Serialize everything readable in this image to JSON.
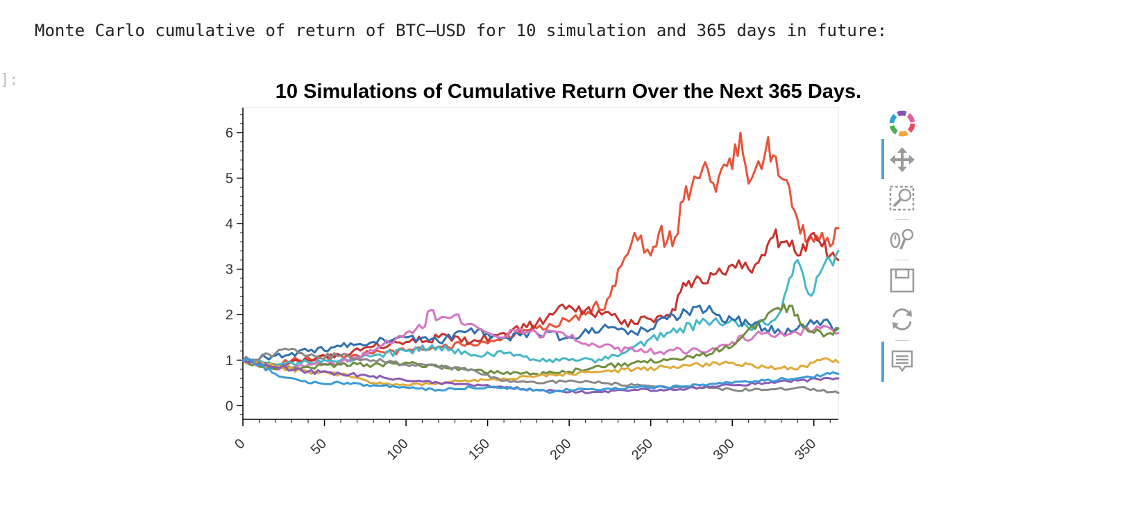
{
  "output": {
    "text": "Monte Carlo cumulative of return of BTC–USD for 10 simulation and 365 days in future:",
    "prompt": "]:"
  },
  "chart_data": {
    "type": "line",
    "title": "10 Simulations of Cumulative Return Over the Next 365 Days.",
    "xlabel": "",
    "ylabel": "",
    "xlim": [
      0,
      365
    ],
    "ylim": [
      -0.3,
      6.55
    ],
    "x_ticks": [
      0,
      50,
      100,
      150,
      200,
      250,
      300,
      350
    ],
    "y_ticks": [
      0,
      1,
      2,
      3,
      4,
      5,
      6
    ],
    "grid": false,
    "legend": "none",
    "series": [
      {
        "color": "#e8533a",
        "x": [
          0,
          10,
          20,
          30,
          45,
          60,
          80,
          100,
          120,
          140,
          160,
          180,
          200,
          210,
          215,
          220,
          225,
          230,
          240,
          250,
          255,
          260,
          265,
          270,
          275,
          280,
          285,
          290,
          295,
          300,
          305,
          308,
          312,
          318,
          322,
          325,
          330,
          335,
          340,
          345,
          350,
          355,
          360,
          365
        ],
        "y": [
          1.0,
          0.95,
          0.9,
          1.0,
          1.05,
          1.1,
          1.15,
          1.2,
          1.3,
          1.35,
          1.5,
          1.7,
          1.85,
          2.0,
          2.2,
          2.1,
          2.4,
          3.0,
          3.8,
          3.3,
          3.8,
          3.6,
          3.7,
          4.5,
          4.8,
          5.0,
          5.2,
          4.7,
          5.3,
          5.2,
          6.0,
          5.3,
          5.0,
          5.2,
          5.9,
          5.5,
          5.0,
          4.8,
          4.1,
          3.6,
          3.6,
          3.8,
          3.5,
          3.9
        ]
      },
      {
        "color": "#c8322d",
        "x": [
          0,
          20,
          40,
          60,
          80,
          100,
          120,
          140,
          160,
          180,
          190,
          200,
          210,
          220,
          230,
          240,
          250,
          260,
          265,
          270,
          275,
          280,
          285,
          290,
          300,
          310,
          320,
          325,
          330,
          335,
          340,
          345,
          350,
          355,
          360,
          365
        ],
        "y": [
          1.0,
          0.9,
          1.0,
          1.1,
          1.3,
          1.4,
          1.5,
          1.4,
          1.6,
          1.8,
          2.0,
          2.2,
          2.1,
          2.0,
          1.9,
          1.8,
          1.9,
          2.0,
          2.1,
          2.7,
          2.6,
          2.8,
          2.7,
          2.9,
          3.1,
          3.0,
          3.3,
          3.7,
          3.6,
          3.5,
          3.3,
          3.4,
          3.8,
          3.5,
          3.3,
          3.2
        ]
      },
      {
        "color": "#44b7c8",
        "x": [
          0,
          20,
          40,
          60,
          80,
          100,
          120,
          140,
          160,
          180,
          200,
          220,
          240,
          260,
          280,
          300,
          310,
          320,
          330,
          335,
          340,
          345,
          350,
          355,
          360,
          365
        ],
        "y": [
          1.0,
          0.9,
          0.95,
          1.0,
          1.1,
          1.2,
          1.3,
          1.1,
          1.15,
          1.0,
          1.0,
          1.0,
          1.3,
          1.6,
          1.8,
          1.9,
          1.7,
          1.8,
          2.1,
          2.8,
          3.2,
          2.6,
          2.5,
          3.0,
          3.2,
          3.4
        ]
      },
      {
        "color": "#2f6fb0",
        "x": [
          0,
          20,
          40,
          60,
          80,
          100,
          120,
          140,
          160,
          180,
          200,
          220,
          240,
          260,
          280,
          290,
          300,
          310,
          320,
          330,
          340,
          350,
          360,
          365
        ],
        "y": [
          1.0,
          1.1,
          1.2,
          1.3,
          1.4,
          1.5,
          1.4,
          1.7,
          1.5,
          1.6,
          1.5,
          1.7,
          1.6,
          1.9,
          2.2,
          2.0,
          1.9,
          1.8,
          1.7,
          1.6,
          1.7,
          1.8,
          1.8,
          1.7
        ]
      },
      {
        "color": "#d675c2",
        "x": [
          0,
          20,
          40,
          60,
          80,
          100,
          110,
          115,
          120,
          130,
          140,
          150,
          160,
          170,
          180,
          200,
          220,
          240,
          260,
          280,
          300,
          320,
          340,
          360,
          365
        ],
        "y": [
          1.0,
          0.8,
          0.9,
          0.95,
          1.2,
          1.6,
          1.7,
          2.1,
          1.9,
          2.0,
          1.8,
          1.6,
          1.5,
          1.7,
          1.6,
          1.5,
          1.3,
          1.2,
          1.2,
          1.2,
          1.4,
          1.6,
          1.6,
          1.7,
          1.6
        ]
      },
      {
        "color": "#6e8f3e",
        "x": [
          0,
          20,
          40,
          60,
          80,
          100,
          120,
          140,
          160,
          180,
          200,
          220,
          240,
          260,
          280,
          300,
          320,
          330,
          335,
          340,
          345,
          350,
          360,
          365
        ],
        "y": [
          1.0,
          0.8,
          0.85,
          0.9,
          0.9,
          0.95,
          0.85,
          0.8,
          0.7,
          0.7,
          0.75,
          0.85,
          0.95,
          1.0,
          1.1,
          1.3,
          1.9,
          2.1,
          2.2,
          2.0,
          1.7,
          1.6,
          1.6,
          1.7
        ]
      },
      {
        "color": "#dfaa3a",
        "x": [
          0,
          20,
          40,
          60,
          80,
          100,
          120,
          140,
          160,
          180,
          200,
          220,
          240,
          260,
          280,
          300,
          320,
          340,
          350,
          360,
          365
        ],
        "y": [
          1.0,
          0.85,
          0.75,
          0.7,
          0.5,
          0.45,
          0.5,
          0.55,
          0.6,
          0.65,
          0.7,
          0.75,
          0.8,
          0.85,
          0.9,
          0.95,
          0.85,
          0.8,
          0.95,
          1.0,
          0.95
        ]
      },
      {
        "color": "#888888",
        "x": [
          0,
          20,
          30,
          40,
          60,
          80,
          100,
          120,
          140,
          160,
          180,
          200,
          220,
          240,
          260,
          280,
          300,
          320,
          340,
          360,
          365
        ],
        "y": [
          1.0,
          1.15,
          1.25,
          1.1,
          1.1,
          1.0,
          0.9,
          0.85,
          0.8,
          0.55,
          0.5,
          0.55,
          0.5,
          0.45,
          0.4,
          0.4,
          0.35,
          0.35,
          0.4,
          0.3,
          0.28
        ]
      },
      {
        "color": "#8a5bb7",
        "x": [
          0,
          20,
          40,
          60,
          80,
          100,
          120,
          140,
          160,
          180,
          200,
          220,
          240,
          260,
          280,
          300,
          320,
          340,
          360,
          365
        ],
        "y": [
          1.0,
          0.85,
          0.75,
          0.7,
          0.65,
          0.55,
          0.5,
          0.45,
          0.4,
          0.35,
          0.3,
          0.3,
          0.35,
          0.35,
          0.4,
          0.45,
          0.5,
          0.55,
          0.6,
          0.6
        ]
      },
      {
        "color": "#3a9ad9",
        "x": [
          0,
          10,
          20,
          40,
          60,
          80,
          100,
          120,
          140,
          160,
          180,
          190,
          200,
          220,
          240,
          260,
          280,
          300,
          320,
          340,
          360,
          365
        ],
        "y": [
          1.0,
          0.9,
          0.7,
          0.5,
          0.5,
          0.45,
          0.4,
          0.35,
          0.4,
          0.4,
          0.35,
          0.3,
          0.35,
          0.35,
          0.4,
          0.4,
          0.45,
          0.5,
          0.55,
          0.6,
          0.7,
          0.7
        ]
      }
    ]
  },
  "toolbar": {
    "tools": [
      "bokeh-logo-icon",
      "pan-icon",
      "box-zoom-icon",
      "wheel-zoom-icon",
      "save-icon",
      "reset-icon",
      "hover-icon"
    ]
  }
}
